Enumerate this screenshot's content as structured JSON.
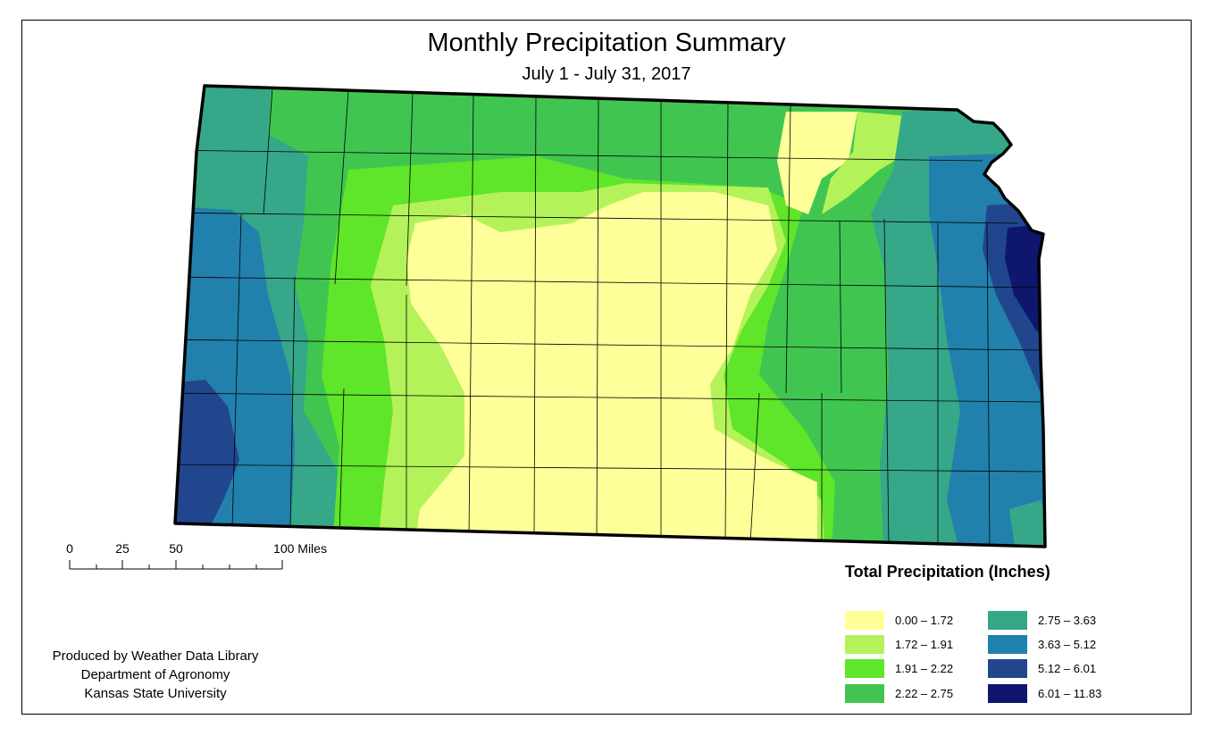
{
  "title": "Monthly Precipitation Summary",
  "subtitle": "July 1 - July 31, 2017",
  "legend": {
    "title": "Total Precipitation (Inches)",
    "classes": [
      {
        "label": "0.00 – 1.72",
        "color": "#ffff99"
      },
      {
        "label": "1.72 – 1.91",
        "color": "#b4f25a"
      },
      {
        "label": "1.91 – 2.22",
        "color": "#5fe52a"
      },
      {
        "label": "2.22 – 2.75",
        "color": "#41c551"
      },
      {
        "label": "2.75 – 3.63",
        "color": "#36a789"
      },
      {
        "label": "3.63 – 5.12",
        "color": "#2280ad"
      },
      {
        "label": "5.12 – 6.01",
        "color": "#21468e"
      },
      {
        "label": "6.01 – 11.83",
        "color": "#0f166d"
      }
    ]
  },
  "scale_bar": {
    "labels": [
      "0",
      "25",
      "50",
      "100 Miles"
    ]
  },
  "credits": [
    "Produced by Weather Data Library",
    "Department of Agronomy",
    "Kansas State University"
  ]
}
